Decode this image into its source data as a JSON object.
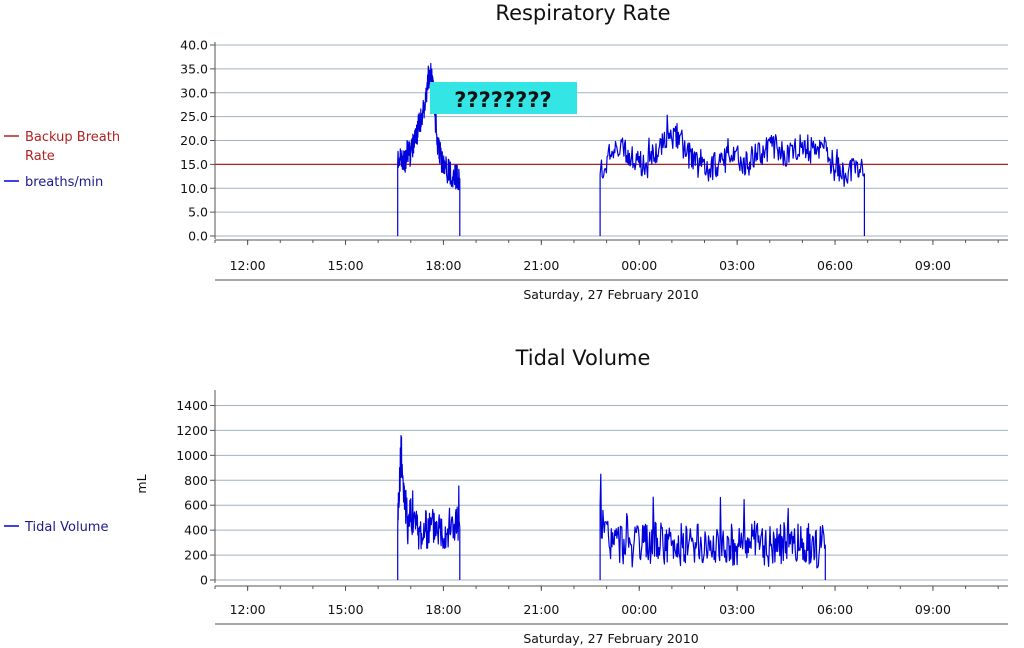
{
  "chart_data": [
    {
      "type": "line",
      "title": "Respiratory Rate",
      "ylabel": "",
      "xlabel": "Saturday, 27 February 2010",
      "x_tick_labels": [
        "12:00",
        "15:00",
        "18:00",
        "21:00",
        "00:00",
        "03:00",
        "06:00",
        "09:00"
      ],
      "x_range_hours": [
        11,
        35.3
      ],
      "y_ticks": [
        "0.0",
        "5.0",
        "10.0",
        "15.0",
        "20.0",
        "25.0",
        "30.0",
        "35.0",
        "40.0"
      ],
      "ylim": [
        0,
        40
      ],
      "grid": true,
      "legend_position": "left",
      "annotation": {
        "text": "????????",
        "background": "#33e5e5"
      },
      "series": [
        {
          "name": "Backup Breath Rate",
          "color": "#b22222",
          "style": "constant",
          "value": 15
        },
        {
          "name": "breaths/min",
          "color": "#0000dd",
          "segments": [
            {
              "x": [
                16.6,
                16.7,
                16.8,
                16.9,
                17.0,
                17.1,
                17.2,
                17.3,
                17.4,
                17.5,
                17.6,
                17.7,
                17.8,
                17.9,
                18.0,
                18.1,
                18.2,
                18.3,
                18.4,
                18.5
              ],
              "y": [
                17,
                16,
                15,
                18,
                17,
                20,
                22,
                24,
                27,
                31,
                34,
                30,
                20,
                17,
                15,
                14,
                13,
                13,
                12,
                12
              ]
            },
            {
              "x": [
                22.8,
                23.1,
                23.4,
                23.7,
                24.0,
                24.3,
                24.6,
                24.9,
                25.2,
                25.5,
                25.8,
                26.1,
                26.4,
                26.7,
                27.0,
                27.3,
                27.6,
                27.9,
                28.2,
                28.5,
                28.8,
                29.1,
                29.4,
                29.7,
                30.0,
                30.3,
                30.6,
                30.9
              ],
              "y": [
                14,
                16,
                18,
                17,
                15,
                15,
                19,
                20,
                21,
                17,
                15,
                14,
                15,
                16,
                17,
                15,
                17,
                18,
                19,
                16,
                18,
                19,
                17,
                18,
                14,
                13,
                14,
                13
              ]
            }
          ]
        }
      ]
    },
    {
      "type": "line",
      "title": "Tidal Volume",
      "ylabel": "mL",
      "xlabel": "Saturday, 27 February 2010",
      "x_tick_labels": [
        "12:00",
        "15:00",
        "18:00",
        "21:00",
        "00:00",
        "03:00",
        "06:00",
        "09:00"
      ],
      "x_range_hours": [
        11,
        35.3
      ],
      "y_ticks": [
        "0",
        "200",
        "400",
        "600",
        "800",
        "1000",
        "1200",
        "1400"
      ],
      "ylim": [
        0,
        1500
      ],
      "grid": true,
      "legend_position": "left",
      "series": [
        {
          "name": "Tidal Volume",
          "color": "#0000dd",
          "segments": [
            {
              "x": [
                16.6,
                16.7,
                16.8,
                16.9,
                17.0,
                17.2,
                17.4,
                17.6,
                17.8,
                18.0,
                18.2,
                18.4,
                18.5
              ],
              "y": [
                500,
                1000,
                700,
                450,
                550,
                400,
                380,
                420,
                450,
                400,
                430,
                450,
                420
              ]
            },
            {
              "x": [
                22.8,
                23.1,
                23.4,
                23.7,
                24.0,
                24.3,
                24.6,
                24.9,
                25.2,
                25.5,
                25.8,
                26.1,
                26.4,
                26.7,
                27.0,
                27.3,
                27.6,
                27.9,
                28.2,
                28.5,
                28.8,
                29.1,
                29.4,
                29.7
              ],
              "y": [
                450,
                320,
                300,
                280,
                260,
                300,
                310,
                270,
                290,
                300,
                280,
                260,
                300,
                290,
                280,
                310,
                300,
                270,
                300,
                290,
                280,
                300,
                260,
                280
              ]
            }
          ]
        }
      ]
    }
  ]
}
